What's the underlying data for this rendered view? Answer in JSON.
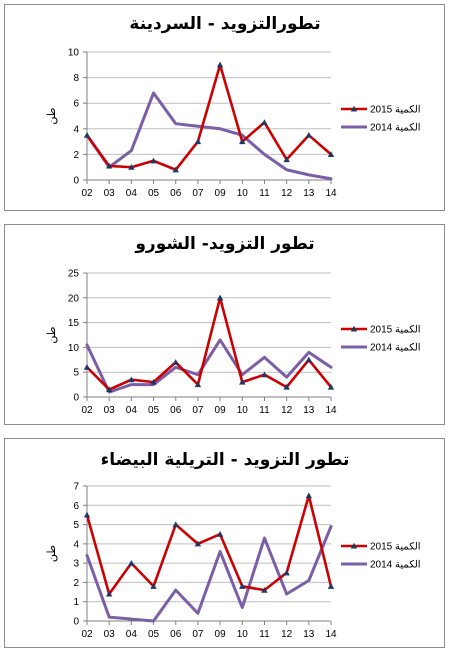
{
  "colors": {
    "series_2015": "#cc0000",
    "series_2014": "#7b5ea8",
    "marker": "#1f3864",
    "axis": "#808080",
    "grid": "#bfbfbf"
  },
  "chart_data": [
    {
      "type": "line",
      "title": "تطورالتزويد - السردينة",
      "ylabel": "طن",
      "categories": [
        "02",
        "03",
        "04",
        "05",
        "06",
        "07",
        "09",
        "10",
        "11",
        "12",
        "13",
        "14"
      ],
      "ylim": [
        0,
        10
      ],
      "yticks": [
        0,
        2,
        4,
        6,
        8,
        10
      ],
      "grid": true,
      "legend": "right",
      "series": [
        {
          "name": "2015 الكمية",
          "values": [
            3.5,
            1.1,
            1.0,
            1.5,
            0.8,
            3.0,
            9.0,
            3.0,
            4.5,
            1.6,
            3.5,
            2.0
          ]
        },
        {
          "name": "2014 الكمية",
          "values": [
            3.5,
            1.0,
            2.3,
            6.8,
            4.4,
            4.2,
            4.0,
            3.5,
            2.0,
            0.8,
            0.4,
            0.1
          ]
        }
      ]
    },
    {
      "type": "line",
      "title": "تطور التزويد- الشورو",
      "ylabel": "طن",
      "categories": [
        "02",
        "03",
        "04",
        "05",
        "06",
        "07",
        "09",
        "10",
        "11",
        "12",
        "13",
        "14"
      ],
      "ylim": [
        0,
        25
      ],
      "yticks": [
        0,
        5,
        10,
        15,
        20,
        25
      ],
      "grid": true,
      "legend": "right",
      "series": [
        {
          "name": "2015 الكمية",
          "values": [
            6.0,
            1.5,
            3.5,
            3.0,
            7.0,
            2.5,
            20.0,
            3.0,
            4.5,
            2.0,
            7.5,
            2.0
          ]
        },
        {
          "name": "2014 الكمية",
          "values": [
            10.5,
            1.0,
            2.5,
            2.5,
            6.0,
            4.5,
            11.5,
            4.5,
            8.0,
            4.0,
            9.0,
            6.0
          ]
        }
      ]
    },
    {
      "type": "line",
      "title": "تطور التزويد - التريلية البيضاء",
      "ylabel": "طن",
      "categories": [
        "02",
        "03",
        "04",
        "05",
        "06",
        "07",
        "09",
        "10",
        "11",
        "12",
        "13",
        "14"
      ],
      "ylim": [
        0,
        7
      ],
      "yticks": [
        0,
        1,
        2,
        3,
        4,
        5,
        6,
        7
      ],
      "grid": true,
      "legend": "right",
      "series": [
        {
          "name": "2015 الكمية",
          "values": [
            5.5,
            1.4,
            3.0,
            1.8,
            5.0,
            4.0,
            4.5,
            1.8,
            1.6,
            2.5,
            6.5,
            1.8
          ]
        },
        {
          "name": "2014 الكمية",
          "values": [
            3.4,
            0.2,
            0.1,
            0.0,
            1.6,
            0.4,
            3.6,
            0.7,
            4.3,
            1.4,
            2.1,
            4.9
          ]
        }
      ]
    }
  ]
}
